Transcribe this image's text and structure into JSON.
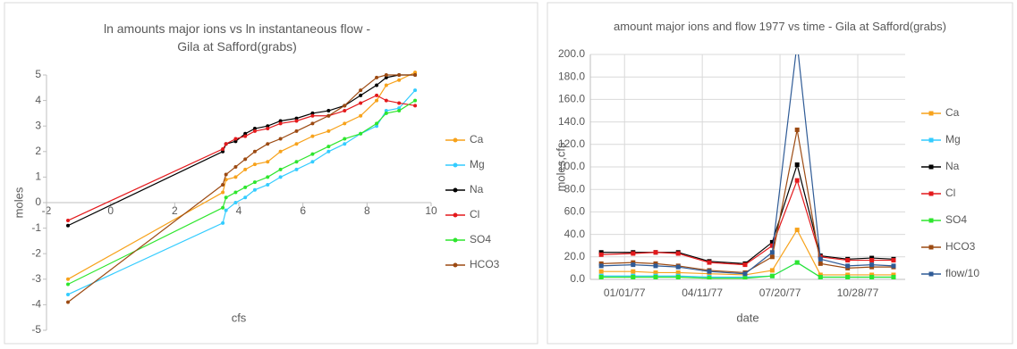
{
  "chart_data": [
    {
      "type": "line",
      "title": "ln amounts major ions vs ln instantaneous flow - Gila at Safford(grabs)",
      "x_label": "cfs",
      "y_label": "moles",
      "xlim": [
        -2,
        10
      ],
      "xticks": [
        -2,
        0,
        2,
        4,
        6,
        8,
        10
      ],
      "ylim": [
        -5,
        5
      ],
      "yticks": [
        -5,
        -4,
        -3,
        -2,
        -1,
        0,
        1,
        2,
        3,
        4,
        5
      ],
      "grid": false,
      "legend": "right",
      "series": [
        {
          "name": "Ca",
          "color": "#f7a21b",
          "x": [
            -1.33,
            3.5,
            3.6,
            3.9,
            4.2,
            4.5,
            4.9,
            5.3,
            5.8,
            6.3,
            6.8,
            7.3,
            7.8,
            8.3,
            8.6,
            9.0,
            9.5
          ],
          "values": [
            -3,
            0.4,
            0.9,
            1.0,
            1.3,
            1.5,
            1.6,
            2.0,
            2.3,
            2.6,
            2.8,
            3.1,
            3.4,
            4.0,
            4.6,
            4.8,
            5.1
          ]
        },
        {
          "name": "Mg",
          "color": "#33ccff",
          "x": [
            -1.33,
            3.5,
            3.6,
            3.9,
            4.2,
            4.5,
            4.9,
            5.3,
            5.8,
            6.3,
            6.8,
            7.3,
            7.8,
            8.3,
            8.6,
            9.0,
            9.5
          ],
          "values": [
            -3.6,
            -0.8,
            -0.3,
            0,
            0.2,
            0.5,
            0.7,
            1.0,
            1.3,
            1.6,
            2.0,
            2.3,
            2.7,
            3.0,
            3.6,
            3.7,
            4.4
          ]
        },
        {
          "name": "Na",
          "color": "#000000",
          "x": [
            -1.33,
            3.5,
            3.6,
            3.9,
            4.2,
            4.5,
            4.9,
            5.3,
            5.8,
            6.3,
            6.8,
            7.3,
            7.8,
            8.3,
            8.6,
            9.0,
            9.5
          ],
          "values": [
            -0.9,
            2.0,
            2.3,
            2.4,
            2.7,
            2.9,
            3.0,
            3.2,
            3.3,
            3.5,
            3.6,
            3.8,
            4.2,
            4.6,
            4.9,
            5.0,
            5.0
          ]
        },
        {
          "name": "Cl",
          "color": "#e3191c",
          "x": [
            -1.33,
            3.5,
            3.6,
            3.9,
            4.2,
            4.5,
            4.9,
            5.3,
            5.8,
            6.3,
            6.8,
            7.3,
            7.8,
            8.3,
            8.6,
            9.0,
            9.5
          ],
          "values": [
            -0.7,
            2.1,
            2.3,
            2.5,
            2.6,
            2.8,
            2.9,
            3.1,
            3.2,
            3.4,
            3.4,
            3.6,
            3.9,
            4.2,
            4.0,
            3.9,
            3.8
          ]
        },
        {
          "name": "SO4",
          "color": "#2ee62e",
          "x": [
            -1.33,
            3.5,
            3.6,
            3.9,
            4.2,
            4.5,
            4.9,
            5.3,
            5.8,
            6.3,
            6.8,
            7.3,
            7.8,
            8.3,
            8.6,
            9.0,
            9.5
          ],
          "values": [
            -3.2,
            -0.2,
            0.2,
            0.4,
            0.6,
            0.8,
            1.0,
            1.3,
            1.6,
            1.9,
            2.2,
            2.5,
            2.7,
            3.1,
            3.5,
            3.6,
            4.0
          ]
        },
        {
          "name": "HCO3",
          "color": "#9c4a12",
          "x": [
            -1.33,
            3.5,
            3.6,
            3.9,
            4.2,
            4.5,
            4.9,
            5.3,
            5.8,
            6.3,
            6.8,
            7.3,
            7.8,
            8.3,
            8.6,
            9.0,
            9.5
          ],
          "values": [
            -3.9,
            0.7,
            1.1,
            1.4,
            1.7,
            2.0,
            2.3,
            2.5,
            2.8,
            3.1,
            3.4,
            3.8,
            4.4,
            4.9,
            5.0,
            5.0,
            5.0
          ]
        }
      ]
    },
    {
      "type": "line",
      "title": "amount major ions and flow 1977 vs time - Gila at Safford(grabs)",
      "x_label": "date",
      "y_label": "moles,cfs",
      "xlim": [
        "1976-11-18",
        "1977-12-28"
      ],
      "xticks": [
        {
          "value": "1977-01-01",
          "label": "01/01/77"
        },
        {
          "value": "1977-04-11",
          "label": "04/11/77"
        },
        {
          "value": "1977-07-20",
          "label": "07/20/77"
        },
        {
          "value": "1977-10-28",
          "label": "10/28/77"
        }
      ],
      "ylim": [
        0,
        200
      ],
      "yticks": [
        {
          "value": 0,
          "label": "0.0"
        },
        {
          "value": 20,
          "label": "20.0"
        },
        {
          "value": 40,
          "label": "40.0"
        },
        {
          "value": 60,
          "label": "60.0"
        },
        {
          "value": 80,
          "label": "80.0"
        },
        {
          "value": 100,
          "label": "100.0"
        },
        {
          "value": 120,
          "label": "120.0"
        },
        {
          "value": 140,
          "label": "140.0"
        },
        {
          "value": 160,
          "label": "160.0"
        },
        {
          "value": 180,
          "label": "180.0"
        },
        {
          "value": 200,
          "label": "200.0"
        }
      ],
      "grid": true,
      "legend": "right",
      "x": [
        "1976-12-02",
        "1977-01-12",
        "1977-02-10",
        "1977-03-11",
        "1977-04-20",
        "1977-06-05",
        "1977-07-10",
        "1977-08-11",
        "1977-09-10",
        "1977-10-15",
        "1977-11-15",
        "1977-12-13"
      ],
      "series": [
        {
          "name": "Ca",
          "color": "#f7a21b",
          "values": [
            7,
            7,
            6,
            6,
            5,
            4,
            8,
            44,
            4,
            4,
            4,
            4
          ]
        },
        {
          "name": "Mg",
          "color": "#33ccff",
          "values": [
            3,
            3,
            3,
            3,
            2,
            2,
            3,
            15,
            2,
            2,
            2,
            2
          ]
        },
        {
          "name": "Na",
          "color": "#000000",
          "values": [
            24,
            24,
            24,
            24,
            16,
            14,
            33,
            102,
            21,
            18,
            19,
            18
          ]
        },
        {
          "name": "Cl",
          "color": "#e3191c",
          "values": [
            22,
            23,
            24,
            23,
            15,
            13,
            30,
            88,
            20,
            17,
            17,
            17
          ]
        },
        {
          "name": "SO4",
          "color": "#2ee62e",
          "values": [
            2,
            2,
            2,
            2,
            1,
            1,
            3,
            15,
            2,
            2,
            2,
            2
          ]
        },
        {
          "name": "HCO3",
          "color": "#9c4a12",
          "values": [
            14,
            15,
            14,
            12,
            8,
            6,
            20,
            133,
            14,
            10,
            11,
            11
          ]
        },
        {
          "name": "flow/10",
          "color": "#2f5b96",
          "values": [
            12,
            13,
            12,
            11,
            7,
            5,
            24,
            210,
            18,
            12,
            13,
            12
          ]
        }
      ]
    }
  ]
}
